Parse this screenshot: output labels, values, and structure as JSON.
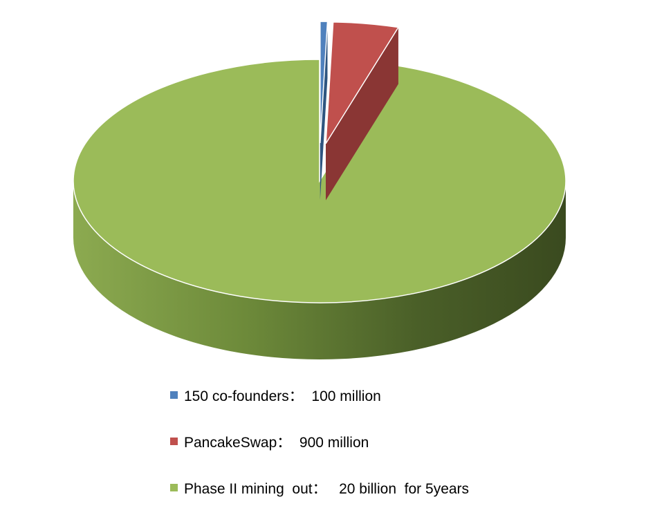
{
  "chart_data": {
    "type": "pie",
    "style": "3d-exploded",
    "title": "",
    "series": [
      {
        "name": "150 co-founders：",
        "label": "150 co-founders：  100 million",
        "value": 100,
        "unit": "million",
        "color": "#4F81BD"
      },
      {
        "name": "PancakeSwap：",
        "label": "PancakeSwap：  900 million",
        "value": 900,
        "unit": "million",
        "color": "#C0504D"
      },
      {
        "name": "Phase II mining out：",
        "label": "Phase II mining  out：   20 billion  for 5years",
        "value": 20000,
        "unit": "million",
        "color": "#9BBB59"
      }
    ],
    "legend_position": "bottom",
    "grid": false
  }
}
